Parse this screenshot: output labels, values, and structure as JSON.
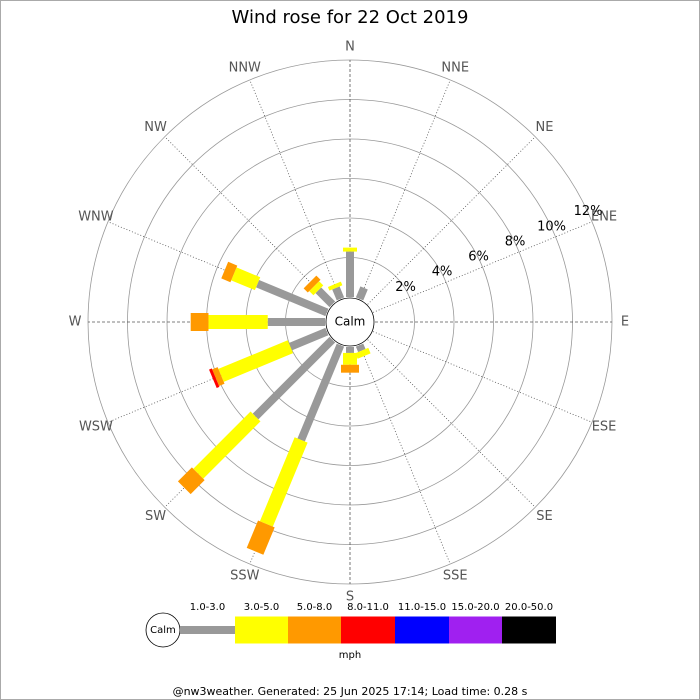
{
  "chart_data": {
    "type": "windrose",
    "title": "Wind rose for 22 Oct 2019",
    "categories": [
      "N",
      "NNE",
      "NE",
      "ENE",
      "E",
      "ESE",
      "SE",
      "SSE",
      "S",
      "SSW",
      "SW",
      "WSW",
      "W",
      "WNW",
      "NW",
      "NNW"
    ],
    "calm_label": "Calm",
    "series": [
      {
        "name": "1.0-3.0",
        "color": "#999999",
        "values": [
          2.3,
          0.6,
          0,
          0,
          0,
          0,
          0,
          0.3,
          0.3,
          5.2,
          5.5,
          2.0,
          2.9,
          3.8,
          1.0,
          0.6
        ]
      },
      {
        "name": "3.0-5.0",
        "color": "#ffff00",
        "values": [
          0.2,
          0,
          0,
          0,
          0,
          0,
          0,
          0.3,
          0.6,
          4.6,
          4.1,
          3.8,
          3.0,
          1.3,
          0.3,
          0.2
        ]
      },
      {
        "name": "5.0-8.0",
        "color": "#ff9900",
        "values": [
          0,
          0,
          0,
          0,
          0,
          0,
          0,
          0,
          0.4,
          1.5,
          1.0,
          0.3,
          0.9,
          0.5,
          0.3,
          0
        ]
      },
      {
        "name": "8.0-11.0",
        "color": "#ff0000",
        "values": [
          0,
          0,
          0,
          0,
          0,
          0,
          0,
          0,
          0,
          0,
          0,
          0.15,
          0,
          0,
          0,
          0
        ]
      },
      {
        "name": "11.0-15.0",
        "color": "#0000ff",
        "values": [
          0,
          0,
          0,
          0,
          0,
          0,
          0,
          0,
          0,
          0,
          0,
          0,
          0,
          0,
          0,
          0
        ]
      },
      {
        "name": "15.0-20.0",
        "color": "#a020f0",
        "values": [
          0,
          0,
          0,
          0,
          0,
          0,
          0,
          0,
          0,
          0,
          0,
          0,
          0,
          0,
          0,
          0
        ]
      },
      {
        "name": "20.0-50.0",
        "color": "#000000",
        "values": [
          0,
          0,
          0,
          0,
          0,
          0,
          0,
          0,
          0,
          0,
          0,
          0,
          0,
          0,
          0,
          0
        ]
      }
    ],
    "rlim": [
      0,
      12
    ],
    "rticks": [
      {
        "value": 2,
        "label": "2%"
      },
      {
        "value": 4,
        "label": "4%"
      },
      {
        "value": 6,
        "label": "6%"
      },
      {
        "value": 8,
        "label": "8%"
      },
      {
        "value": 10,
        "label": "10%"
      },
      {
        "value": 12,
        "label": "12%"
      }
    ],
    "legend_unit": "mph",
    "footer": "@nw3weather. Generated: 25 Jun 2025 17:14; Load time: 0.28 s"
  }
}
